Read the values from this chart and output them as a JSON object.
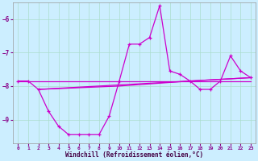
{
  "xlabel": "Windchill (Refroidissement éolien,°C)",
  "bg_color": "#cceeff",
  "grid_color": "#aaddcc",
  "line_color": "#cc00cc",
  "marker": "+",
  "ylim": [
    -9.7,
    -5.5
  ],
  "xlim": [
    -0.5,
    23.5
  ],
  "yticks": [
    -9,
    -8,
    -7,
    -6
  ],
  "xticks": [
    0,
    1,
    2,
    3,
    4,
    5,
    6,
    7,
    8,
    9,
    10,
    11,
    12,
    13,
    14,
    15,
    16,
    17,
    18,
    19,
    20,
    21,
    22,
    23
  ],
  "main_x": [
    0,
    1,
    2,
    3,
    4,
    5,
    6,
    7,
    8,
    9,
    10,
    11,
    12,
    13,
    14,
    15,
    16,
    17,
    18,
    19,
    20,
    21,
    22,
    23
  ],
  "main_y": [
    -7.85,
    -7.85,
    -8.1,
    -8.75,
    -9.2,
    -9.45,
    -9.45,
    -9.45,
    -9.45,
    -8.9,
    -7.85,
    -6.75,
    -6.75,
    -6.55,
    -5.6,
    -7.55,
    -7.65,
    -7.85,
    -8.1,
    -8.1,
    -7.85,
    -7.1,
    -7.55,
    -7.75
  ],
  "trend1_x": [
    0,
    23
  ],
  "trend1_y": [
    -7.85,
    -7.85
  ],
  "trend2_x": [
    2,
    23
  ],
  "trend2_y": [
    -8.1,
    -7.75
  ],
  "trend3_x": [
    2,
    10,
    17,
    23
  ],
  "trend3_y": [
    -8.1,
    -8.0,
    -7.85,
    -7.75
  ]
}
